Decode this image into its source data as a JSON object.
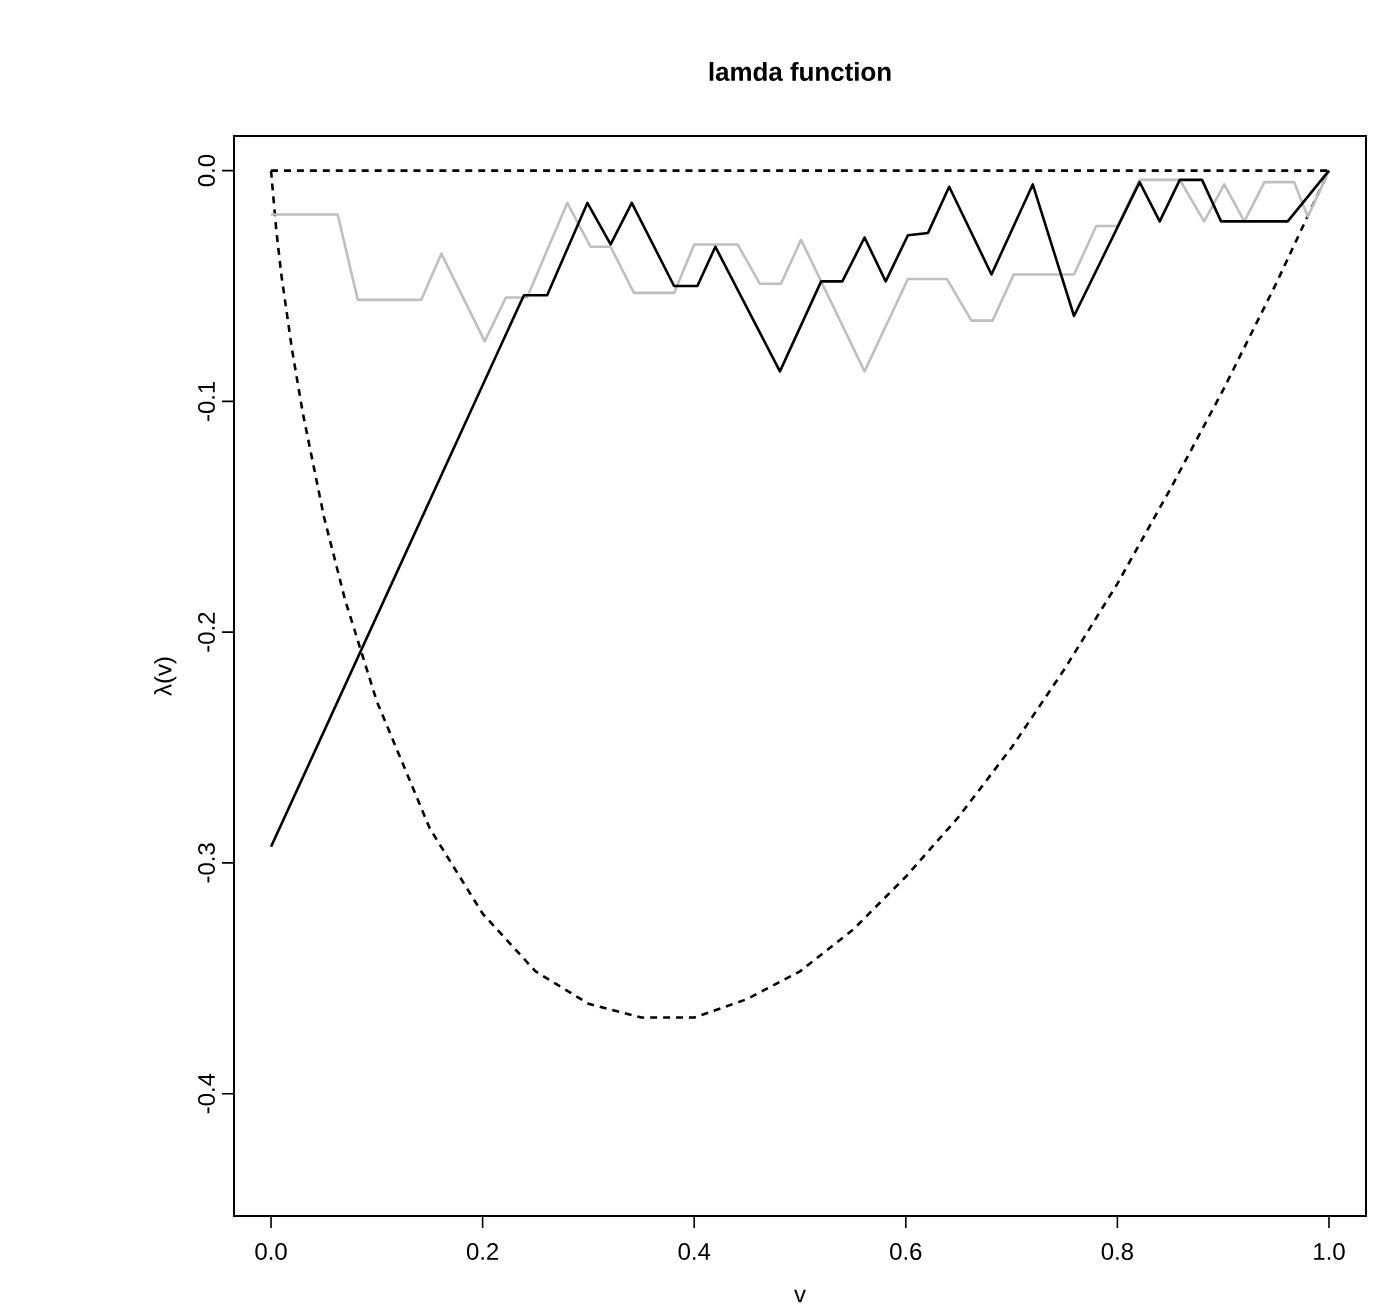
{
  "chart_data": {
    "type": "line",
    "title": "lamda function",
    "xlabel": "v",
    "ylabel": "λ(v)",
    "xlim": [
      -0.035,
      1.035
    ],
    "ylim": [
      -0.453,
      0.015
    ],
    "xticks": [
      {
        "value": 0,
        "label": "0.0"
      },
      0.2,
      0.4,
      0.6,
      0.8,
      {
        "value": 1,
        "label": "1.0"
      }
    ],
    "yticks": [
      {
        "value": 0,
        "label": "0.0"
      },
      -0.1,
      -0.2,
      -0.3,
      -0.4
    ],
    "grid": false,
    "series": [
      {
        "color": "#000000",
        "line_style": "dashed",
        "x": [
          0,
          1
        ],
        "values": [
          0,
          0
        ]
      },
      {
        "color": "#000000",
        "line_style": "dashed",
        "x": [
          0,
          0.005,
          0.01,
          0.02,
          0.03,
          0.05,
          0.07,
          0.1,
          0.15,
          0.2,
          0.25,
          0.3,
          0.35,
          0.4,
          0.45,
          0.5,
          0.55,
          0.6,
          0.65,
          0.7,
          0.75,
          0.8,
          0.85,
          0.9,
          0.95,
          1.0
        ],
        "values": [
          0,
          -0.026,
          -0.046,
          -0.078,
          -0.105,
          -0.15,
          -0.186,
          -0.23,
          -0.285,
          -0.322,
          -0.347,
          -0.361,
          -0.367,
          -0.367,
          -0.359,
          -0.347,
          -0.329,
          -0.306,
          -0.28,
          -0.25,
          -0.216,
          -0.179,
          -0.138,
          -0.095,
          -0.049,
          0
        ]
      },
      {
        "color": "#bfbfbf",
        "line_style": "solid",
        "x": [
          0,
          0.063,
          0.082,
          0.142,
          0.161,
          0.202,
          0.222,
          0.242,
          0.28,
          0.302,
          0.321,
          0.343,
          0.381,
          0.4,
          0.441,
          0.462,
          0.482,
          0.501,
          0.561,
          0.602,
          0.639,
          0.662,
          0.682,
          0.702,
          0.759,
          0.78,
          0.8,
          0.821,
          0.859,
          0.882,
          0.901,
          0.92,
          0.939,
          0.967,
          0.98,
          1.0
        ],
        "values": [
          -0.019,
          -0.019,
          -0.056,
          -0.056,
          -0.036,
          -0.074,
          -0.055,
          -0.055,
          -0.014,
          -0.033,
          -0.033,
          -0.053,
          -0.053,
          -0.032,
          -0.032,
          -0.049,
          -0.049,
          -0.03,
          -0.087,
          -0.047,
          -0.047,
          -0.065,
          -0.065,
          -0.045,
          -0.045,
          -0.024,
          -0.024,
          -0.004,
          -0.004,
          -0.022,
          -0.006,
          -0.022,
          -0.005,
          -0.005,
          -0.02,
          0
        ]
      },
      {
        "color": "#000000",
        "line_style": "solid",
        "x": [
          0,
          0.239,
          0.261,
          0.299,
          0.321,
          0.341,
          0.381,
          0.403,
          0.42,
          0.481,
          0.52,
          0.54,
          0.561,
          0.581,
          0.602,
          0.621,
          0.641,
          0.681,
          0.72,
          0.759,
          0.821,
          0.84,
          0.859,
          0.88,
          0.898,
          0.961,
          1.0
        ],
        "values": [
          -0.293,
          -0.054,
          -0.054,
          -0.014,
          -0.032,
          -0.014,
          -0.05,
          -0.05,
          -0.033,
          -0.087,
          -0.048,
          -0.048,
          -0.029,
          -0.048,
          -0.028,
          -0.027,
          -0.007,
          -0.045,
          -0.006,
          -0.063,
          -0.005,
          -0.022,
          -0.004,
          -0.004,
          -0.022,
          -0.022,
          0
        ]
      }
    ]
  }
}
